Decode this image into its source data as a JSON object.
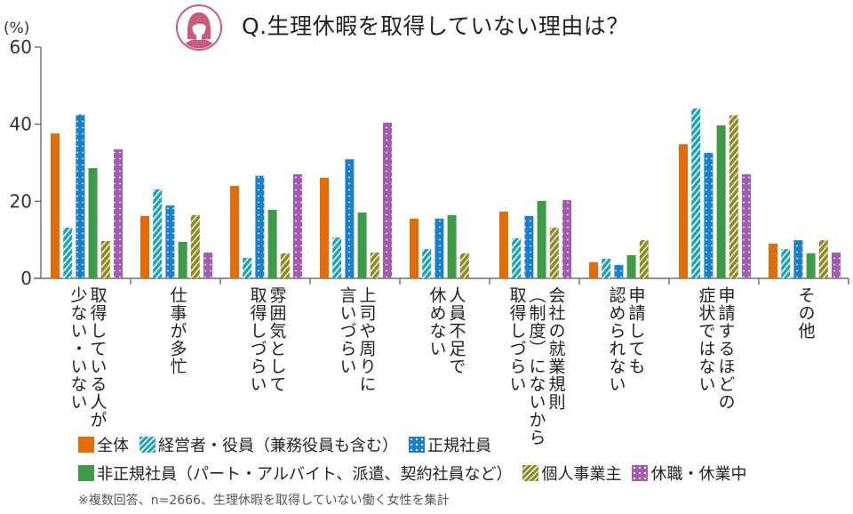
{
  "title": "Q.生理休暇を取得していない理由は？",
  "icon": "woman-avatar-icon",
  "note": "※複数回答、n=2666、生理休暇を取得していない働く女性を集計",
  "chart_data": {
    "type": "bar",
    "title": "Q.生理休暇を取得していない理由は？",
    "ylabel": "(%)",
    "xlabel": "",
    "ylim": [
      0,
      60
    ],
    "yticks": [
      "0",
      "20",
      "40",
      "60"
    ],
    "grid": false,
    "legend_position": "bottom",
    "categories": [
      [
        "取得している人が",
        "少ない・いない"
      ],
      [
        "仕事が多忙"
      ],
      [
        "雰囲気として",
        "取得しづらい"
      ],
      [
        "上司や周りに",
        "言いづらい"
      ],
      [
        "人員不足で",
        "休めない"
      ],
      [
        "会社の就業規則",
        "（制度）にないから",
        "取得しづらい"
      ],
      [
        "申請しても",
        "認められない"
      ],
      [
        "申請するほどの",
        "症状ではない"
      ],
      [
        "その他"
      ]
    ],
    "series": [
      {
        "name": "全体",
        "color": "#e36c0a",
        "pattern": "solid",
        "values": [
          37.6,
          16.2,
          24.0,
          26.1,
          15.5,
          17.3,
          4.2,
          34.8,
          9.0
        ]
      },
      {
        "name": "経営者・役員（兼務役員も含む）",
        "color": "#1ea3b4",
        "pattern": "stripes",
        "values": [
          13.2,
          23.1,
          5.3,
          10.6,
          7.6,
          10.4,
          5.1,
          44.1,
          7.6
        ]
      },
      {
        "name": "正規社員",
        "color": "#1b7fc9",
        "pattern": "dots",
        "values": [
          42.5,
          18.9,
          26.6,
          30.9,
          15.5,
          16.2,
          3.5,
          32.6,
          9.9
        ]
      },
      {
        "name": "非正規社員（パート・アルバイト、派遣、契約社員など）",
        "color": "#3f9b47",
        "pattern": "solid",
        "values": [
          28.6,
          9.5,
          17.8,
          17.1,
          16.4,
          20.1,
          6.0,
          39.7,
          6.5
        ]
      },
      {
        "name": "個人事業主",
        "color": "#8b8a2e",
        "pattern": "stripes",
        "values": [
          9.7,
          16.4,
          6.5,
          6.7,
          6.5,
          13.2,
          9.9,
          42.3,
          9.9
        ]
      },
      {
        "name": "休職・休業中",
        "color": "#a15bb1",
        "pattern": "dots",
        "values": [
          33.5,
          6.7,
          27.0,
          40.4,
          null,
          20.3,
          null,
          27.0,
          6.7
        ]
      }
    ]
  },
  "legend": {
    "row1": [
      0,
      1,
      2
    ],
    "row2": [
      3,
      4,
      5
    ]
  }
}
